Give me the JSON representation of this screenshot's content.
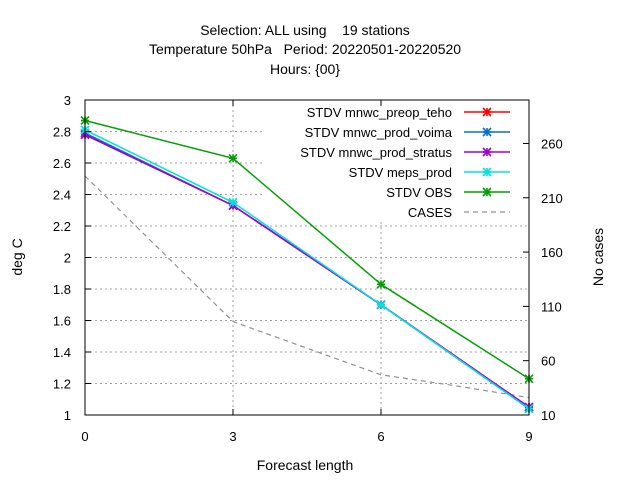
{
  "chart_data": {
    "type": "line",
    "title_lines": [
      "Selection: ALL using    19 stations",
      "Temperature 50hPa   Period: 20220501-20220520",
      "Hours: {00}"
    ],
    "xlabel": "Forecast length",
    "ylabel": "deg C",
    "y2label": "No cases",
    "x": [
      0,
      3,
      6,
      9
    ],
    "xticks": [
      "0",
      "3",
      "6",
      "9"
    ],
    "xlim": [
      0,
      9
    ],
    "ylim": [
      1,
      3
    ],
    "yticks": [
      "1",
      "1.2",
      "1.4",
      "1.6",
      "1.8",
      "2",
      "2.2",
      "2.4",
      "2.6",
      "2.8",
      "3"
    ],
    "y2lim": [
      10,
      300
    ],
    "y2ticks": [
      "10",
      "60",
      "110",
      "160",
      "210",
      "260"
    ],
    "grid": true,
    "legend_position": "top-right",
    "series": [
      {
        "name": "STDV mnwc_preop_teho",
        "color": "#ff0000",
        "marker": "x",
        "values": [
          2.78,
          2.33,
          1.7,
          1.05
        ]
      },
      {
        "name": "STDV mnwc_prod_voima",
        "color": "#0070d0",
        "marker": "x",
        "values": [
          2.79,
          2.33,
          1.7,
          1.04
        ]
      },
      {
        "name": "STDV mnwc_prod_stratus",
        "color": "#a000d0",
        "marker": "x",
        "values": [
          2.78,
          2.33,
          1.7,
          1.05
        ]
      },
      {
        "name": "STDV meps_prod",
        "color": "#00e0e0",
        "marker": "x",
        "values": [
          2.81,
          2.35,
          1.7,
          1.04
        ]
      },
      {
        "name": "STDV OBS",
        "color": "#00a000",
        "marker": "x",
        "values": [
          2.87,
          2.63,
          1.83,
          1.23
        ]
      }
    ],
    "cases": {
      "name": "CASES",
      "color": "#909090",
      "axis": "y2",
      "x": [
        0,
        3,
        6,
        7.5,
        9
      ],
      "values": [
        230,
        96,
        47,
        37,
        26
      ]
    }
  }
}
